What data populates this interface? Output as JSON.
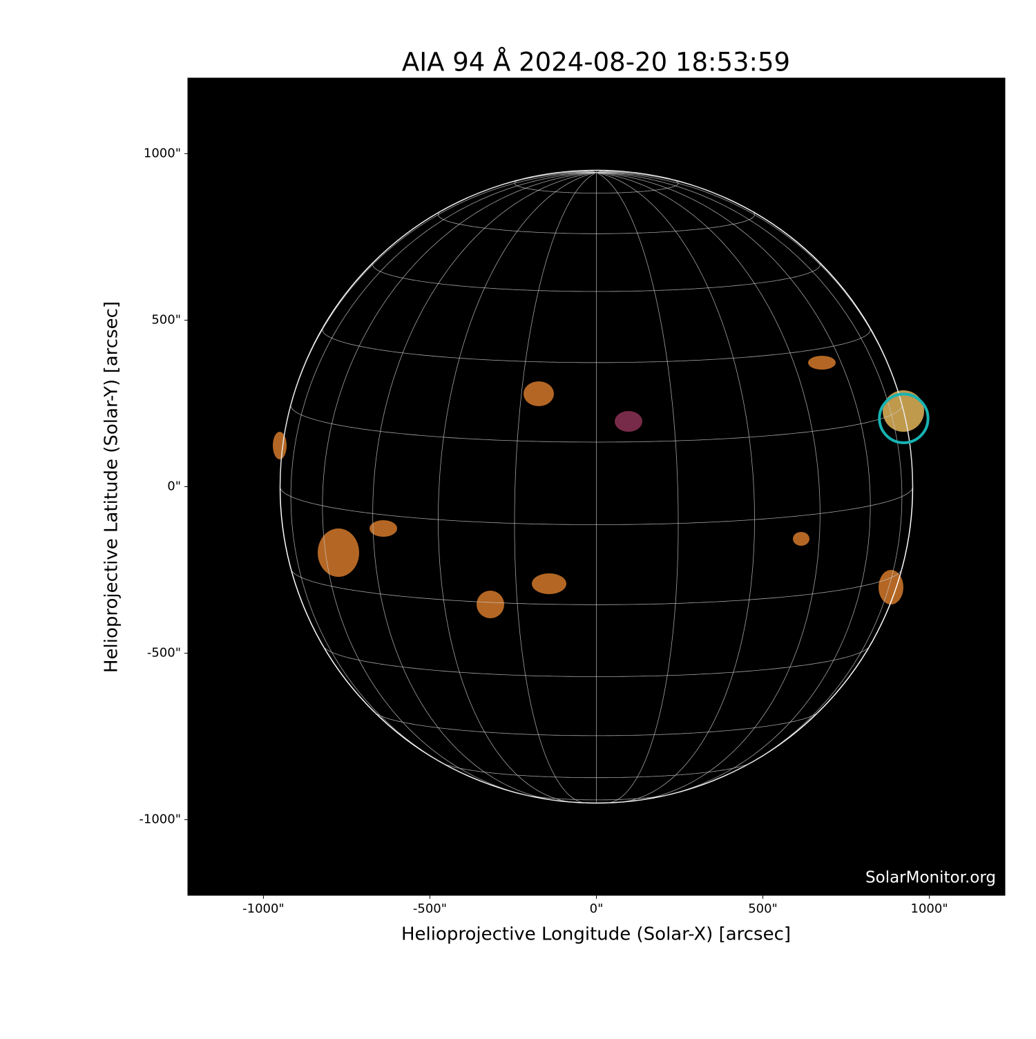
{
  "chart_data": {
    "type": "solar-map",
    "title": "AIA 94 Å 2024-08-20 18:53:59",
    "xlabel": "Helioprojective Longitude (Solar-X) [arcsec]",
    "ylabel": "Helioprojective Latitude (Solar-Y) [arcsec]",
    "xlim": [
      -1227,
      1227
    ],
    "ylim": [
      -1227,
      1227
    ],
    "xticks": [
      {
        "value": -1000,
        "label": "-1000\""
      },
      {
        "value": -500,
        "label": "-500\""
      },
      {
        "value": 0,
        "label": "0\""
      },
      {
        "value": 500,
        "label": "500\""
      },
      {
        "value": 1000,
        "label": "1000\""
      }
    ],
    "yticks": [
      {
        "value": -1000,
        "label": "-1000\""
      },
      {
        "value": -500,
        "label": "-500\""
      },
      {
        "value": 0,
        "label": "0\""
      },
      {
        "value": 500,
        "label": "500\""
      },
      {
        "value": 1000,
        "label": "1000\""
      }
    ],
    "solar_radius": 950,
    "b0": 6.9,
    "grid": true,
    "grid_spacing": 15,
    "circle": {
      "x": 923,
      "y": 205,
      "r": 73,
      "color": "#17b3b3"
    },
    "watermark": "SolarMonitor.org"
  }
}
